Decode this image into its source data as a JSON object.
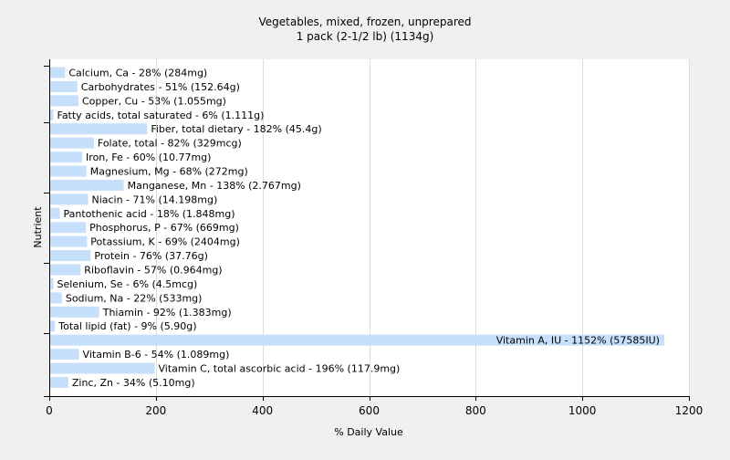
{
  "chart_data": {
    "type": "bar",
    "orientation": "horizontal",
    "title": "Vegetables, mixed, frozen, unprepared",
    "subtitle": "1 pack (2-1/2 lb) (1134g)",
    "xlabel": "% Daily Value",
    "ylabel": "Nutrient",
    "xlim": [
      0,
      1200
    ],
    "xticks": [
      0,
      200,
      400,
      600,
      800,
      1000,
      1200
    ],
    "grid": true,
    "bar_color": "#c6dffa",
    "background_color": "#ffffff",
    "categories": [
      "Calcium, Ca - 28% (284mg)",
      "Carbohydrates - 51% (152.64g)",
      "Copper, Cu - 53% (1.055mg)",
      "Fatty acids, total saturated - 6% (1.111g)",
      "Fiber, total dietary - 182% (45.4g)",
      "Folate, total - 82% (329mcg)",
      "Iron, Fe - 60% (10.77mg)",
      "Magnesium, Mg - 68% (272mg)",
      "Manganese, Mn - 138% (2.767mg)",
      "Niacin - 71% (14.198mg)",
      "Pantothenic acid - 18% (1.848mg)",
      "Phosphorus, P - 67% (669mg)",
      "Potassium, K - 69% (2404mg)",
      "Protein - 76% (37.76g)",
      "Riboflavin - 57% (0.964mg)",
      "Selenium, Se - 6% (4.5mcg)",
      "Sodium, Na - 22% (533mg)",
      "Thiamin - 92% (1.383mg)",
      "Total lipid (fat) - 9% (5.90g)",
      "Vitamin A, IU - 1152% (57585IU)",
      "Vitamin B-6 - 54% (1.089mg)",
      "Vitamin C, total ascorbic acid - 196% (117.9mg)",
      "Zinc, Zn - 34% (5.10mg)"
    ],
    "values": [
      28,
      51,
      53,
      6,
      182,
      82,
      60,
      68,
      138,
      71,
      18,
      67,
      69,
      76,
      57,
      6,
      22,
      92,
      9,
      1152,
      54,
      196,
      34
    ]
  }
}
